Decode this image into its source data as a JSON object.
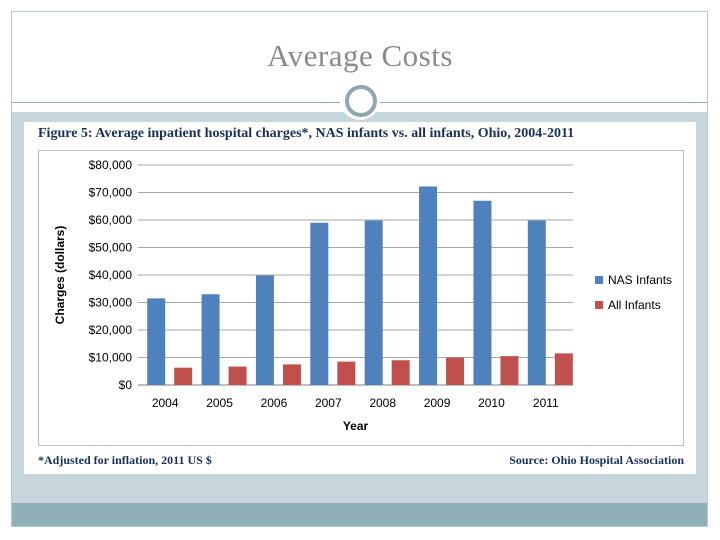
{
  "slide": {
    "title": "Average Costs"
  },
  "figure": {
    "heading": "Figure 5: Average inpatient hospital charges*, NAS infants vs. all infants, Ohio, 2004-2011",
    "footnote": "*Adjusted for inflation, 2011 US $",
    "source": "Source: Ohio Hospital Association"
  },
  "chart_data": {
    "type": "bar",
    "title": "Figure 5: Average inpatient hospital charges*, NAS infants vs. all infants, Ohio, 2004-2011",
    "xlabel": "Year",
    "ylabel": "Charges (dollars)",
    "categories": [
      "2004",
      "2005",
      "2006",
      "2007",
      "2008",
      "2009",
      "2010",
      "2011"
    ],
    "series": [
      {
        "name": "NAS Infants",
        "color": "#4f81bd",
        "values": [
          31500,
          33000,
          39800,
          59000,
          59800,
          72200,
          67000,
          59800
        ]
      },
      {
        "name": "All Infants",
        "color": "#c0504d",
        "values": [
          6300,
          6700,
          7500,
          8500,
          9000,
          10000,
          10500,
          11500
        ]
      }
    ],
    "ylim": [
      0,
      80000
    ],
    "yticks": [
      0,
      10000,
      20000,
      30000,
      40000,
      50000,
      60000,
      70000,
      80000
    ],
    "ytick_labels": [
      "$0",
      "$10,000",
      "$20,000",
      "$30,000",
      "$40,000",
      "$50,000",
      "$60,000",
      "$70,000",
      "$80,000"
    ],
    "grid": true,
    "legend_position": "right"
  }
}
